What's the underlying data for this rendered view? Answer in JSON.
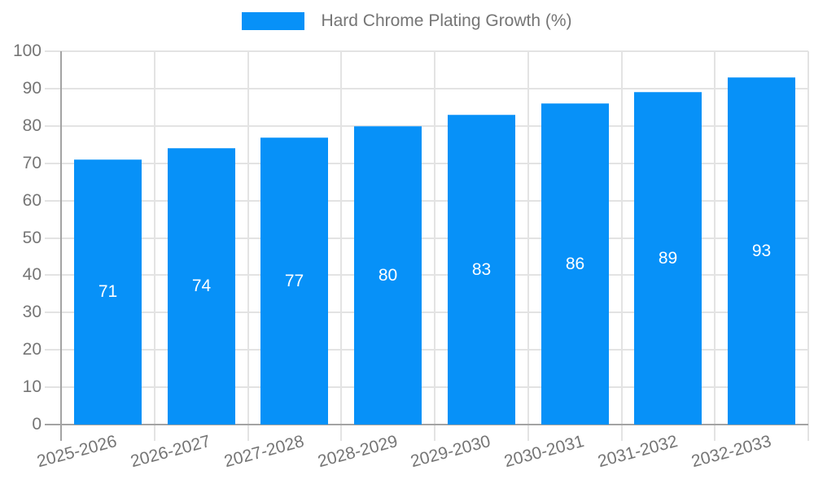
{
  "legend": {
    "label": "Hard Chrome Plating Growth (%)",
    "swatch_color": "#0791f8",
    "swatch_icon": "legend-color-swatch"
  },
  "chart_data": {
    "type": "bar",
    "title": "Hard Chrome Plating Growth (%)",
    "categories": [
      "2025-2026",
      "2026-2027",
      "2027-2028",
      "2028-2029",
      "2029-2030",
      "2030-2031",
      "2031-2032",
      "2032-2033"
    ],
    "series": [
      {
        "name": "Hard Chrome Plating Growth (%)",
        "values": [
          71,
          74,
          77,
          80,
          83,
          86,
          89,
          93
        ]
      }
    ],
    "value_labels": [
      "71",
      "74",
      "77",
      "80",
      "83",
      "86",
      "89",
      "93"
    ],
    "xlabel": "",
    "ylabel": "",
    "ylim": [
      0,
      100
    ],
    "ytick_step": 10,
    "ytick_labels": [
      "0",
      "10",
      "20",
      "30",
      "40",
      "50",
      "60",
      "70",
      "80",
      "90",
      "100"
    ],
    "grid": true,
    "legend_position": "top-center",
    "colors": {
      "bar": "#0791f8",
      "grid": "#e3e3e3",
      "axis": "#a3a3a3",
      "tick_label": "#757575",
      "value_label": "#ffffff",
      "background": "#ffffff"
    }
  }
}
